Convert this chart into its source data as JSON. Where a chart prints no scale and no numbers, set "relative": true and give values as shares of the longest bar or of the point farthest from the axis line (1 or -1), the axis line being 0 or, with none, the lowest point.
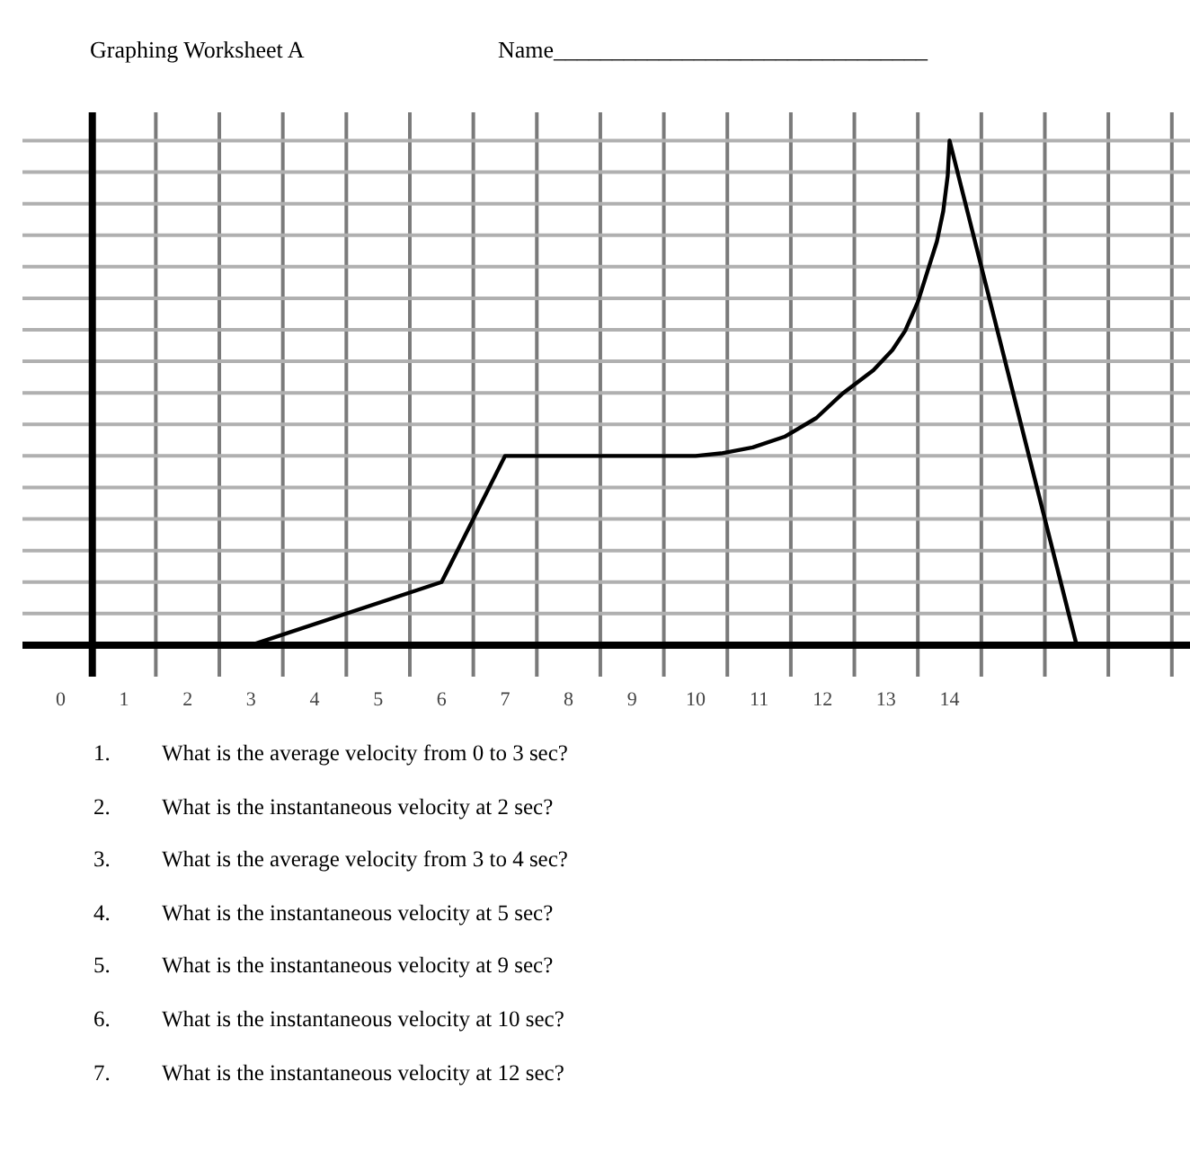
{
  "chart_data": {
    "type": "line",
    "title": "Graphing Worksheet A",
    "annotations": [
      "Name________________________________",
      "1. What is the average velocity from 0 to 3 sec?",
      "2. What is the instantaneous velocity at 2 sec?",
      "3. What is the average velocity from 3 to 4 sec?",
      "4. What is the instantaneous velocity at 5 sec?",
      "5. What is the instantaneous velocity at 9 sec?",
      "6. What is the instantaneous velocity at 10 sec?",
      "7. What is the instantaneous velocity at 12 sec?"
    ],
    "x": [
      0,
      3,
      6,
      7,
      10,
      10.4,
      10.9,
      11.4,
      11.9,
      12.3,
      12.8,
      13.1,
      13.3,
      13.5,
      13.65,
      13.8,
      13.9,
      13.97,
      14,
      16
    ],
    "series": [
      {
        "color": "#000000",
        "values": [
          0,
          0,
          0.125,
          0.375,
          0.375,
          0.38,
          0.392,
          0.413,
          0.45,
          0.497,
          0.545,
          0.585,
          0.623,
          0.68,
          0.74,
          0.8,
          0.86,
          0.93,
          1,
          0
        ]
      }
    ],
    "ref_lines": [
      {
        "axis": "x",
        "value": 0.5,
        "color": "#000000"
      }
    ],
    "relative": true,
    "xlim": [
      -0.6,
      17.8
    ],
    "xticks": [
      0,
      1,
      2,
      3,
      4,
      5,
      6,
      7,
      8,
      9,
      10,
      11,
      12,
      13,
      14
    ],
    "grid": true
  }
}
